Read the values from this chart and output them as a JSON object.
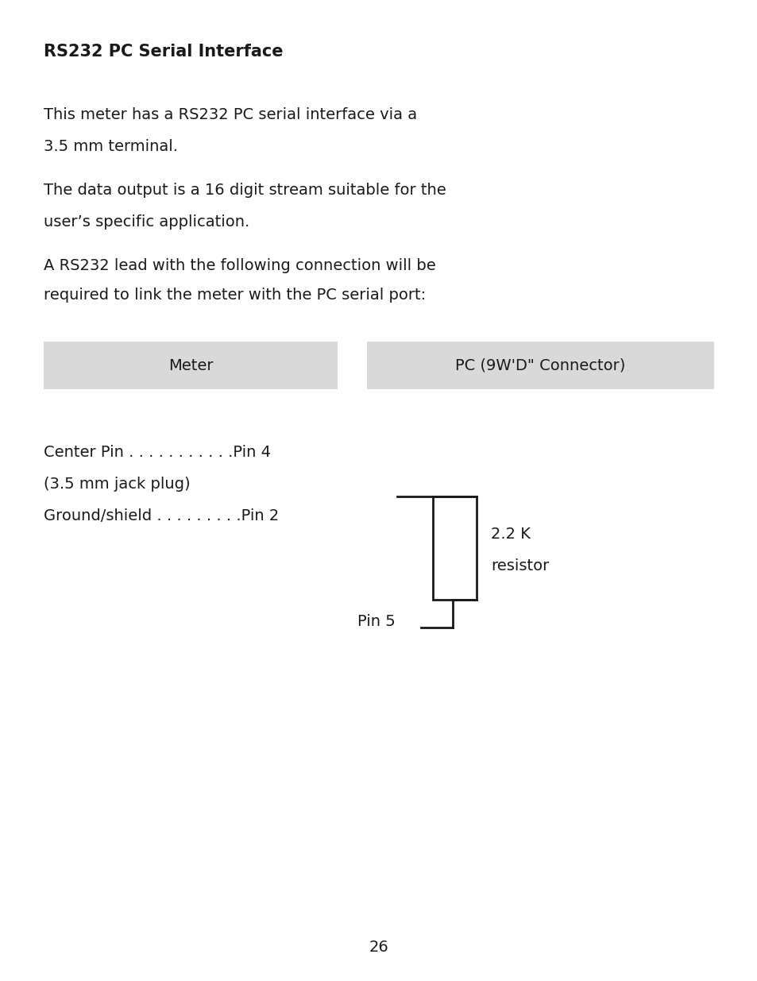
{
  "title": "RS232 PC Serial Interface",
  "para1_line1": "This meter has a RS232 PC serial interface via a",
  "para1_line2": "3.5 mm terminal.",
  "para2_line1": "The data output is a 16 digit stream suitable for the",
  "para2_line2": "user’s specific application.",
  "para3_line1": "A RS232 lead with the following connection will be",
  "para3_line2": "required to link the meter with the PC serial port:",
  "header_left": "Meter",
  "header_right": "PC (9W'D\" Connector)",
  "row1": "Center Pin . . . . . . . . . . .Pin 4",
  "row1b": "(3.5 mm jack plug)",
  "row2": "Ground/shield . . . . . . . . .Pin 2",
  "pin5_label": "Pin 5",
  "resistor_label1": "2.2 K",
  "resistor_label2": "resistor",
  "page_num": "26",
  "bg_color": "#ffffff",
  "header_bg": "#d9d9d9",
  "text_color": "#1a1a1a",
  "title_fontsize": 15,
  "body_fontsize": 14,
  "header_fontsize": 14
}
